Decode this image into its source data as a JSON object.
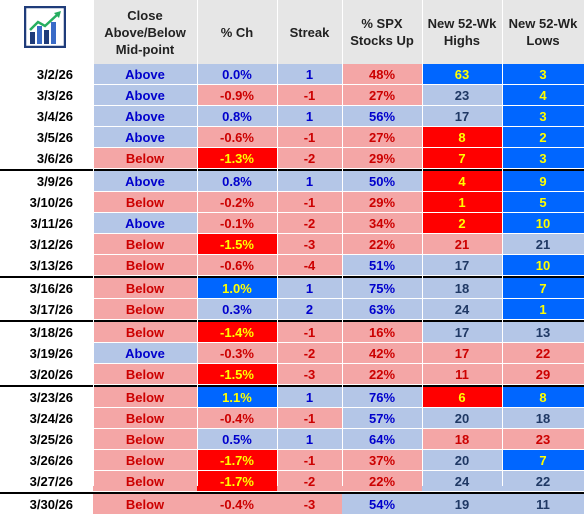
{
  "columns": {
    "position": "Close\nAbove/Below\nMid-point",
    "change": "% Ch",
    "streak": "Streak",
    "pct_up": "% SPX\nStocks Up",
    "highs": "New 52-Wk\nHighs",
    "lows": "New 52-Wk\nLows"
  },
  "logo_icon": "bar-chart-trend-logo-icon",
  "palette": {
    "blue_light": "#b4c6e7",
    "red_light": "#f4a6a6",
    "red_strong": "#ff0000",
    "blue_strong": "#0066ff",
    "text_blue": "#0000cc",
    "text_red": "#cc0000",
    "text_yellow": "#ffff00",
    "text_dark": "#1f3864"
  },
  "rows": [
    {
      "date": "3/2/26",
      "position": "Above",
      "change": "0.0%",
      "streak": "1",
      "pct_up": "48%",
      "highs": "63",
      "lows": "3"
    },
    {
      "date": "3/3/26",
      "position": "Above",
      "change": "-0.9%",
      "streak": "-1",
      "pct_up": "27%",
      "highs": "23",
      "lows": "4"
    },
    {
      "date": "3/4/26",
      "position": "Above",
      "change": "0.8%",
      "streak": "1",
      "pct_up": "56%",
      "highs": "17",
      "lows": "3"
    },
    {
      "date": "3/5/26",
      "position": "Above",
      "change": "-0.6%",
      "streak": "-1",
      "pct_up": "27%",
      "highs": "8",
      "lows": "2"
    },
    {
      "date": "3/6/26",
      "position": "Below",
      "change": "-1.3%",
      "streak": "-2",
      "pct_up": "29%",
      "highs": "7",
      "lows": "3"
    },
    {
      "date": "3/9/26",
      "position": "Above",
      "change": "0.8%",
      "streak": "1",
      "pct_up": "50%",
      "highs": "4",
      "lows": "9"
    },
    {
      "date": "3/10/26",
      "position": "Below",
      "change": "-0.2%",
      "streak": "-1",
      "pct_up": "29%",
      "highs": "1",
      "lows": "5"
    },
    {
      "date": "3/11/26",
      "position": "Above",
      "change": "-0.1%",
      "streak": "-2",
      "pct_up": "34%",
      "highs": "2",
      "lows": "10"
    },
    {
      "date": "3/12/26",
      "position": "Below",
      "change": "-1.5%",
      "streak": "-3",
      "pct_up": "22%",
      "highs": "21",
      "lows": "21"
    },
    {
      "date": "3/13/26",
      "position": "Below",
      "change": "-0.6%",
      "streak": "-4",
      "pct_up": "51%",
      "highs": "17",
      "lows": "10"
    },
    {
      "date": "3/16/26",
      "position": "Below",
      "change": "1.0%",
      "streak": "1",
      "pct_up": "75%",
      "highs": "18",
      "lows": "7"
    },
    {
      "date": "3/17/26",
      "position": "Below",
      "change": "0.3%",
      "streak": "2",
      "pct_up": "63%",
      "highs": "24",
      "lows": "1"
    },
    {
      "date": "3/18/26",
      "position": "Below",
      "change": "-1.4%",
      "streak": "-1",
      "pct_up": "16%",
      "highs": "17",
      "lows": "13"
    },
    {
      "date": "3/19/26",
      "position": "Above",
      "change": "-0.3%",
      "streak": "-2",
      "pct_up": "42%",
      "highs": "17",
      "lows": "22"
    },
    {
      "date": "3/20/26",
      "position": "Below",
      "change": "-1.5%",
      "streak": "-3",
      "pct_up": "22%",
      "highs": "11",
      "lows": "29"
    },
    {
      "date": "3/23/26",
      "position": "Below",
      "change": "1.1%",
      "streak": "1",
      "pct_up": "76%",
      "highs": "6",
      "lows": "8"
    },
    {
      "date": "3/24/26",
      "position": "Below",
      "change": "-0.4%",
      "streak": "-1",
      "pct_up": "57%",
      "highs": "20",
      "lows": "18"
    },
    {
      "date": "3/25/26",
      "position": "Below",
      "change": "0.5%",
      "streak": "1",
      "pct_up": "64%",
      "highs": "18",
      "lows": "23"
    },
    {
      "date": "3/26/26",
      "position": "Below",
      "change": "-1.7%",
      "streak": "-1",
      "pct_up": "37%",
      "highs": "20",
      "lows": "7"
    },
    {
      "date": "3/27/26",
      "position": "Below",
      "change": "-1.7%",
      "streak": "-2",
      "pct_up": "22%",
      "highs": "24",
      "lows": "22"
    },
    {
      "date": "3/30/26",
      "position": "Below",
      "change": "-0.4%",
      "streak": "-3",
      "pct_up": "54%",
      "highs": "19",
      "lows": "11"
    }
  ]
}
